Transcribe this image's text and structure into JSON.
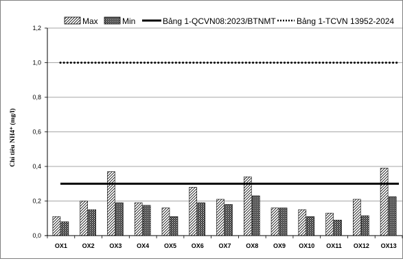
{
  "chart_data": {
    "type": "bar",
    "ylabel": "Chỉ tiêu NH4⁺ (mg/l)",
    "xlabel": "",
    "ylim": [
      0,
      1.2
    ],
    "yticks": [
      "0,0",
      "0,2",
      "0,4",
      "0,6",
      "0,8",
      "1,0",
      "1,2"
    ],
    "ytick_values": [
      0,
      0.2,
      0.4,
      0.6,
      0.8,
      1.0,
      1.2
    ],
    "categories": [
      "OX1",
      "OX2",
      "OX3",
      "OX4",
      "OX5",
      "OX6",
      "OX7",
      "OX8",
      "OX9",
      "OX10",
      "OX11",
      "OX12",
      "OX13"
    ],
    "series": [
      {
        "name": "Max",
        "pattern": "diagonal-hatch",
        "values": [
          0.11,
          0.2,
          0.37,
          0.19,
          0.16,
          0.28,
          0.21,
          0.34,
          0.16,
          0.15,
          0.13,
          0.21,
          0.39
        ]
      },
      {
        "name": "Min",
        "pattern": "dense-grid",
        "values": [
          0.08,
          0.15,
          0.19,
          0.175,
          0.11,
          0.19,
          0.18,
          0.23,
          0.16,
          0.11,
          0.09,
          0.115,
          0.225
        ]
      }
    ],
    "reference_lines": [
      {
        "name": "Bảng 1-QCVN08:2023/BTNMT",
        "value": 0.3,
        "style": "solid"
      },
      {
        "name": "Bảng 1-TCVN 13952-2024",
        "value": 1.0,
        "style": "dotted"
      }
    ],
    "grid": true,
    "legend_position": "top",
    "colors": {
      "axis": "#000000",
      "grid": "#888888",
      "bar_stroke": "#000000",
      "bar_fill": "#ffffff"
    }
  }
}
